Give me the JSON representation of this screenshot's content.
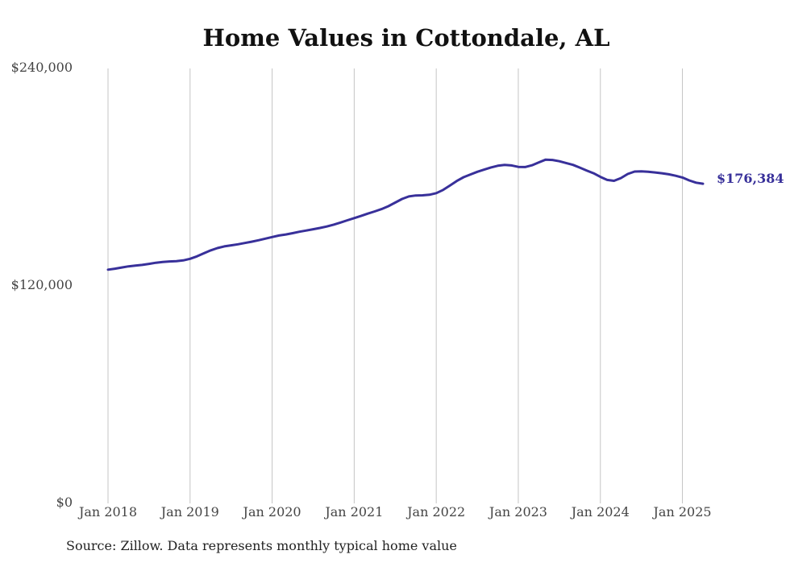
{
  "chart_data": {
    "type": "line",
    "title": "Home Values in Cottondale, AL",
    "xlabel": "",
    "ylabel": "",
    "ylim": [
      0,
      240000
    ],
    "xlim": [
      "2018-01",
      "2025-04"
    ],
    "y_ticks": [
      "$0",
      "$120,000",
      "$240,000"
    ],
    "y_tick_values": [
      0,
      120000,
      240000
    ],
    "x_ticks": [
      "Jan 2018",
      "Jan 2019",
      "Jan 2020",
      "Jan 2021",
      "Jan 2022",
      "Jan 2023",
      "Jan 2024",
      "Jan 2025"
    ],
    "x_tick_values": [
      "2018-01",
      "2019-01",
      "2020-01",
      "2021-01",
      "2022-01",
      "2023-01",
      "2024-01",
      "2025-01"
    ],
    "grid": "vertical",
    "line_color": "#38309a",
    "end_label": "$176,384",
    "series": [
      {
        "x": [
          "2018-01",
          "2018-02",
          "2018-03",
          "2018-04",
          "2018-05",
          "2018-06",
          "2018-07",
          "2018-08",
          "2018-09",
          "2018-10",
          "2018-11",
          "2018-12",
          "2019-01",
          "2019-02",
          "2019-03",
          "2019-04",
          "2019-05",
          "2019-06",
          "2019-07",
          "2019-08",
          "2019-09",
          "2019-10",
          "2019-11",
          "2019-12",
          "2020-01",
          "2020-02",
          "2020-03",
          "2020-04",
          "2020-05",
          "2020-06",
          "2020-07",
          "2020-08",
          "2020-09",
          "2020-10",
          "2020-11",
          "2020-12",
          "2021-01",
          "2021-02",
          "2021-03",
          "2021-04",
          "2021-05",
          "2021-06",
          "2021-07",
          "2021-08",
          "2021-09",
          "2021-10",
          "2021-11",
          "2021-12",
          "2022-01",
          "2022-02",
          "2022-03",
          "2022-04",
          "2022-05",
          "2022-06",
          "2022-07",
          "2022-08",
          "2022-09",
          "2022-10",
          "2022-11",
          "2022-12",
          "2023-01",
          "2023-02",
          "2023-03",
          "2023-04",
          "2023-05",
          "2023-06",
          "2023-07",
          "2023-08",
          "2023-09",
          "2023-10",
          "2023-11",
          "2023-12",
          "2024-01",
          "2024-02",
          "2024-03",
          "2024-04",
          "2024-05",
          "2024-06",
          "2024-07",
          "2024-08",
          "2024-09",
          "2024-10",
          "2024-11",
          "2024-12",
          "2025-01",
          "2025-02",
          "2025-03",
          "2025-04"
        ],
        "values": [
          129000,
          129500,
          130200,
          130800,
          131200,
          131600,
          132200,
          132800,
          133200,
          133500,
          133700,
          134100,
          135000,
          136300,
          138000,
          139600,
          140900,
          141800,
          142400,
          143000,
          143700,
          144400,
          145200,
          146100,
          147000,
          147800,
          148400,
          149100,
          149900,
          150600,
          151300,
          152000,
          152800,
          153800,
          155000,
          156200,
          157400,
          158600,
          159900,
          161100,
          162400,
          164000,
          166000,
          168000,
          169400,
          169900,
          170000,
          170300,
          171200,
          173000,
          175400,
          177900,
          180000,
          181500,
          183000,
          184200,
          185400,
          186300,
          186800,
          186500,
          185700,
          185600,
          186600,
          188200,
          189700,
          189500,
          188800,
          187800,
          186800,
          185300,
          183700,
          182200,
          180200,
          178500,
          178000,
          179500,
          181800,
          183100,
          183200,
          183000,
          182600,
          182200,
          181600,
          180800,
          179800,
          178200,
          177000,
          176384
        ]
      }
    ]
  }
}
